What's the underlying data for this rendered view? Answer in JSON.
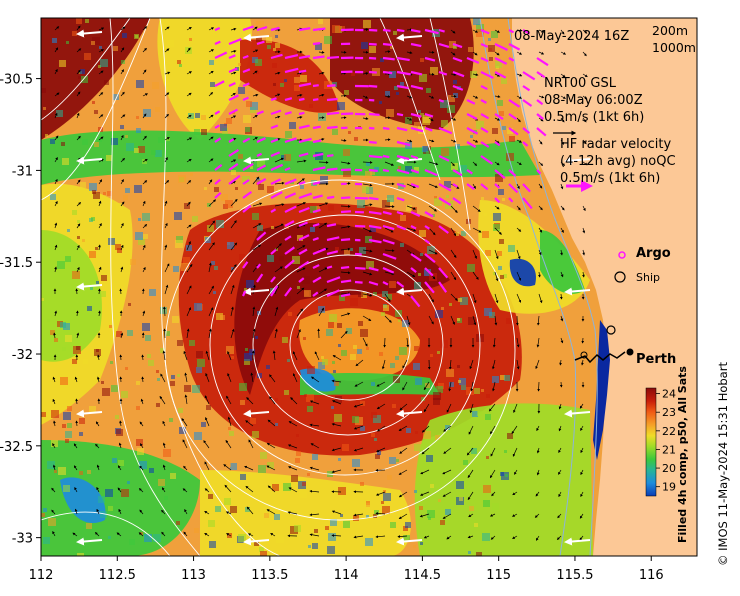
{
  "map": {
    "date_label": "08-May-2024 16Z",
    "isobaths": [
      "200m",
      "1000m"
    ],
    "gsl_block": [
      "NRT00 GSL",
      "08-May 06:00Z",
      "0.5m/s (1kt 6h)"
    ],
    "hf_block": [
      "HF radar velocity",
      "(4-12h avg) noQC",
      "0.5m/s (1kt 6h)"
    ],
    "argo_label": "Argo",
    "ship_label": "Ship",
    "city_label": "Perth",
    "credit": "© IMOS 11-May-2024 15:31 Hobart",
    "colorbar_title": "Filled 4h comp, p50, All Sats",
    "colorbar_ticks": [
      "24",
      "23",
      "22",
      "21",
      "20",
      "19"
    ],
    "colorbar_colors": [
      "#8b0a0a",
      "#c81e0a",
      "#f05a14",
      "#f5a028",
      "#f0dc28",
      "#a0dc28",
      "#3cc83c",
      "#28b496",
      "#1e8cdc",
      "#0a3cb4"
    ]
  },
  "chart_data": {
    "type": "heatmap",
    "title": "",
    "xlabel": "",
    "ylabel": "",
    "x_ticks": [
      "112",
      "112.5",
      "113",
      "113.5",
      "114",
      "114.5",
      "115",
      "115.5",
      "116"
    ],
    "y_ticks": [
      "-30.5",
      "-31",
      "-31.5",
      "-32",
      "-32.5",
      "-33"
    ],
    "xlim": [
      112,
      116.3
    ],
    "ylim": [
      -33.1,
      -30.17
    ],
    "colorbar_range": [
      18.5,
      24.3
    ],
    "isobath_lines": [
      "200m",
      "1000m"
    ]
  }
}
